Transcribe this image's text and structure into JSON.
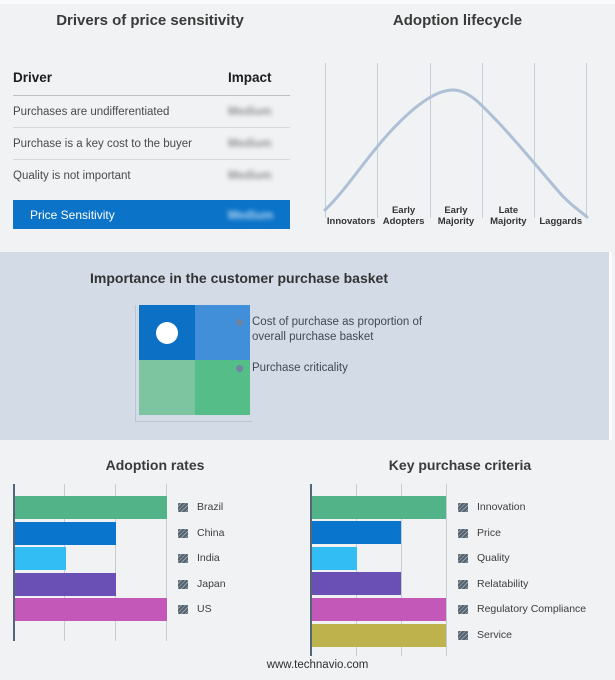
{
  "page": {
    "footer_text": "www.technavio.com",
    "background": "#f1f2f4",
    "band_background": "#d3dce6"
  },
  "drivers_panel": {
    "title": "Drivers of price sensitivity",
    "table": {
      "col_driver": "Driver",
      "col_impact": "Impact",
      "rows": [
        {
          "driver": "Purchases are undifferentiated",
          "impact": "Medium",
          "impact_blurred": true
        },
        {
          "driver": "Purchase is a key cost to the buyer",
          "impact": "Medium",
          "impact_blurred": true
        },
        {
          "driver": "Quality is not important",
          "impact": "Medium",
          "impact_blurred": true
        }
      ],
      "highlight_row": {
        "driver": "Price Sensitivity",
        "impact": "Medium",
        "impact_blurred": true,
        "background": "#0b73c8"
      }
    }
  },
  "lifecycle_panel": {
    "title": "Adoption lifecycle",
    "stages": [
      "Innovators",
      "Early Adopters",
      "Early Majority",
      "Late Majority",
      "Laggards"
    ],
    "curve_color": "#aec0d5"
  },
  "basket_panel": {
    "title": "Importance in the customer purchase basket",
    "legend": [
      {
        "line1": "Cost of purchase as proportion of",
        "line2": "overall purchase basket"
      },
      {
        "line1": "Purchase criticality",
        "line2": ""
      }
    ],
    "quadrant": {
      "top_left": "#0c70c5",
      "top_right": "#418fd9",
      "bottom_left": "#7cc5a0",
      "bottom_right": "#55bd88",
      "marker": "white circle centered in top-left quadrant"
    }
  },
  "adoption_chart": {
    "title": "Adoption rates",
    "legend": [
      "Brazil",
      "China",
      "India",
      "Japan",
      "US"
    ]
  },
  "criteria_chart": {
    "title": "Key purchase criteria",
    "legend": [
      "Innovation",
      "Price",
      "Quality",
      "Relatability",
      "Regulatory Compliance",
      "Service"
    ]
  },
  "chart_data": [
    {
      "type": "line",
      "title": "Adoption lifecycle",
      "categories": [
        "Innovators",
        "Early Adopters",
        "Early Majority",
        "Late Majority",
        "Laggards"
      ],
      "description": "Bell-shaped adoption curve peaking in the Early Majority segment; no numeric axes shown",
      "points_normalized": [
        [
          0.0,
          0.03
        ],
        [
          0.2,
          0.45
        ],
        [
          0.4,
          0.93
        ],
        [
          0.49,
          1.0
        ],
        [
          0.6,
          0.85
        ],
        [
          0.8,
          0.42
        ],
        [
          1.0,
          0.0
        ]
      ],
      "grid": "vertical stage dividers only",
      "legend_position": "none"
    },
    {
      "type": "bar",
      "title": "Adoption rates",
      "orientation": "horizontal",
      "categories": [
        "Brazil",
        "China",
        "India",
        "Japan",
        "US"
      ],
      "values": [
        3,
        2,
        1,
        2,
        3
      ],
      "value_unit": "gridline units (axis has no numeric labels)",
      "xlim": [
        0,
        3
      ],
      "grid": true,
      "colors": [
        "#53b388",
        "#0a75cc",
        "#33bdf5",
        "#6a4fb5",
        "#c358b8"
      ],
      "legend_position": "right"
    },
    {
      "type": "bar",
      "title": "Key purchase criteria",
      "orientation": "horizontal",
      "categories": [
        "Innovation",
        "Price",
        "Quality",
        "Relatability",
        "Regulatory Compliance",
        "Service"
      ],
      "values": [
        3,
        2,
        1,
        2,
        3,
        3
      ],
      "value_unit": "gridline units (axis has no numeric labels)",
      "xlim": [
        0,
        3
      ],
      "grid": true,
      "colors": [
        "#53b388",
        "#0a75cc",
        "#33bdf5",
        "#6a4fb5",
        "#c358b8",
        "#bdb24b"
      ],
      "legend_position": "right"
    }
  ]
}
